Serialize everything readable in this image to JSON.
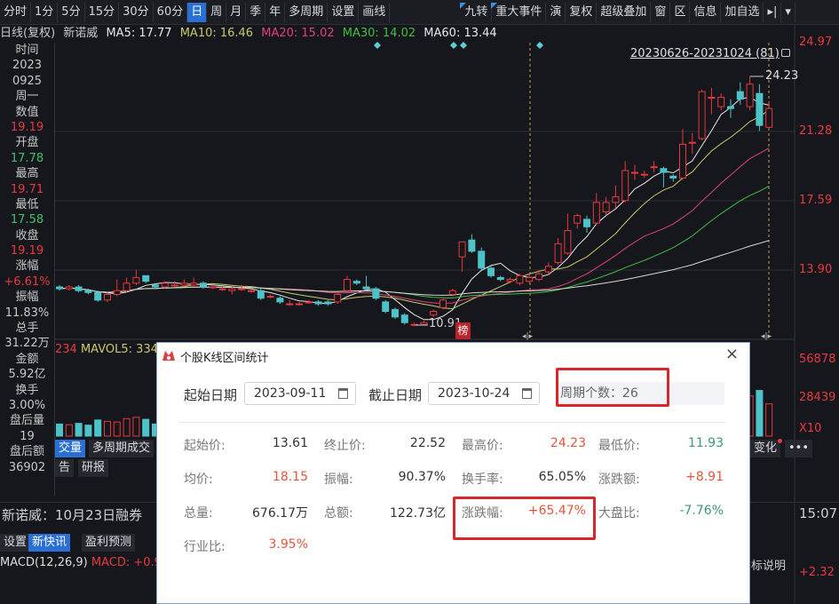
{
  "toolbar": {
    "items": [
      "分时",
      "1分",
      "5分",
      "15分",
      "30分",
      "60分",
      "日",
      "周",
      "月",
      "季",
      "年",
      "多周期",
      "设置",
      "画线"
    ],
    "active": "日",
    "right_items": [
      "九转",
      "重大事件",
      "演",
      "复权",
      "超级叠加",
      "窗",
      "区",
      "信息",
      "加自选"
    ],
    "flagged": [
      "九转",
      "重大事件"
    ],
    "extra_icons": [
      "pin-icon",
      "dropdown-arrow-icon"
    ]
  },
  "legend": {
    "period": "日线(复权)",
    "stock": "新诺威",
    "ma5": "MA5: 17.77",
    "ma10": "MA10: 16.46",
    "ma20": "MA20: 15.02",
    "ma30": "MA30: 14.02",
    "ma60": "MA60: 13.44"
  },
  "colors": {
    "up": "#e8383d",
    "down": "#4cc3c8",
    "ma5": "#e8e8e8",
    "ma10": "#c9c86a",
    "ma20": "#e0407a",
    "ma30": "#3fbf3f",
    "ma60": "#d8d8d8",
    "accent": "#2a6fd6"
  },
  "info_panel": [
    {
      "t": "时间",
      "c": ""
    },
    {
      "t": "2023",
      "c": ""
    },
    {
      "t": "0925",
      "c": ""
    },
    {
      "t": "周一",
      "c": ""
    },
    {
      "t": "数值",
      "c": ""
    },
    {
      "t": "19.19",
      "c": "red"
    },
    {
      "t": "开盘",
      "c": ""
    },
    {
      "t": "17.78",
      "c": "grn"
    },
    {
      "t": "最高",
      "c": ""
    },
    {
      "t": "19.71",
      "c": "red"
    },
    {
      "t": "最低",
      "c": ""
    },
    {
      "t": "17.58",
      "c": "grn"
    },
    {
      "t": "收盘",
      "c": ""
    },
    {
      "t": "19.19",
      "c": "red"
    },
    {
      "t": "涨幅",
      "c": ""
    },
    {
      "t": "+6.61%",
      "c": "red"
    },
    {
      "t": "振幅",
      "c": ""
    },
    {
      "t": "11.83%",
      "c": ""
    },
    {
      "t": "总手",
      "c": ""
    },
    {
      "t": "31.22万",
      "c": ""
    },
    {
      "t": "金额",
      "c": ""
    },
    {
      "t": "5.92亿",
      "c": ""
    },
    {
      "t": "换手",
      "c": ""
    },
    {
      "t": "3.00%",
      "c": ""
    },
    {
      "t": "盘后量",
      "c": ""
    },
    {
      "t": "19",
      "c": ""
    },
    {
      "t": "盘后额",
      "c": ""
    },
    {
      "t": "36902",
      "c": ""
    }
  ],
  "price_axis": [
    "24.97",
    "21.28",
    "17.59",
    "13.90"
  ],
  "volume_axis": [
    "56878",
    "28439",
    "X10"
  ],
  "range_label": "20230626-20231024 (81)",
  "high_mark": "24.23",
  "low_mark": "10.91",
  "badge": "榜",
  "volume_legend": {
    "vol": "234",
    "mavol5": "MAVOL5: 334"
  },
  "chart_data": {
    "type": "candlestick",
    "price_range": [
      11.0,
      24.97
    ],
    "candles": [
      [
        13.0,
        12.9,
        13.1,
        12.8
      ],
      [
        12.9,
        13.0,
        13.1,
        12.8
      ],
      [
        13.0,
        12.8,
        13.1,
        12.7
      ],
      [
        12.8,
        12.7,
        12.9,
        12.6
      ],
      [
        12.7,
        12.3,
        12.8,
        12.2
      ],
      [
        12.3,
        12.6,
        12.7,
        12.2
      ],
      [
        12.6,
        12.8,
        13.4,
        12.5
      ],
      [
        12.8,
        13.2,
        13.5,
        12.7
      ],
      [
        13.2,
        13.5,
        13.9,
        13.1
      ],
      [
        13.6,
        13.3,
        13.6,
        13.2
      ],
      [
        13.1,
        13.0,
        13.2,
        12.9
      ],
      [
        13.0,
        13.2,
        13.3,
        12.9
      ],
      [
        13.1,
        13.1,
        13.3,
        13.0
      ],
      [
        13.1,
        13.2,
        13.4,
        13.0
      ],
      [
        13.1,
        13.2,
        13.5,
        13.0
      ],
      [
        13.2,
        13.0,
        13.3,
        12.9
      ],
      [
        13.0,
        13.0,
        13.1,
        12.9
      ],
      [
        12.9,
        12.9,
        13.0,
        12.8
      ],
      [
        12.8,
        12.9,
        13.0,
        12.6
      ],
      [
        12.9,
        12.9,
        13.1,
        12.8
      ],
      [
        12.8,
        12.8,
        12.9,
        12.7
      ],
      [
        12.8,
        12.4,
        12.9,
        12.3
      ],
      [
        12.5,
        12.5,
        12.6,
        12.4
      ],
      [
        12.4,
        12.2,
        12.5,
        12.1
      ],
      [
        12.1,
        12.1,
        12.3,
        12.0
      ],
      [
        12.1,
        12.1,
        12.2,
        12.0
      ],
      [
        12.2,
        12.2,
        12.3,
        12.1
      ],
      [
        12.2,
        12.1,
        12.3,
        12.0
      ],
      [
        12.2,
        12.1,
        12.3,
        12.0
      ],
      [
        12.2,
        12.6,
        12.7,
        12.1
      ],
      [
        12.8,
        13.4,
        13.6,
        12.7
      ],
      [
        13.3,
        13.2,
        13.4,
        13.1
      ],
      [
        13.0,
        12.9,
        13.6,
        12.8
      ],
      [
        12.9,
        12.4,
        13.0,
        12.3
      ],
      [
        12.2,
        11.7,
        12.3,
        11.6
      ],
      [
        11.8,
        11.4,
        11.9,
        11.3
      ],
      [
        11.5,
        11.1,
        11.6,
        11.0
      ],
      [
        11.0,
        11.0,
        11.1,
        10.91
      ],
      [
        11.0,
        11.1,
        11.2,
        10.95
      ],
      [
        11.5,
        11.7,
        11.8,
        11.4
      ],
      [
        11.9,
        12.3,
        12.4,
        11.8
      ],
      [
        12.6,
        12.8,
        12.9,
        12.5
      ],
      [
        14.6,
        15.4,
        15.4,
        13.8
      ],
      [
        15.5,
        14.9,
        15.8,
        14.8
      ],
      [
        14.9,
        14.0,
        15.1,
        13.9
      ],
      [
        14.0,
        13.6,
        14.1,
        13.5
      ],
      [
        13.5,
        13.4,
        13.6,
        13.3
      ],
      [
        13.3,
        13.4,
        13.5,
        13.2
      ],
      [
        13.2,
        13.6,
        13.7,
        13.1
      ],
      [
        13.3,
        13.5,
        13.7,
        13.2
      ],
      [
        13.4,
        13.7,
        13.9,
        13.3
      ],
      [
        13.8,
        14.1,
        14.3,
        13.7
      ],
      [
        14.3,
        15.3,
        15.6,
        14.2
      ],
      [
        14.8,
        16.0,
        16.9,
        14.7
      ],
      [
        16.4,
        16.8,
        16.9,
        16.1
      ],
      [
        16.6,
        16.2,
        16.8,
        15.9
      ],
      [
        16.4,
        17.5,
        18.0,
        16.3
      ],
      [
        17.0,
        17.5,
        17.8,
        16.8
      ],
      [
        17.5,
        17.8,
        18.4,
        17.2
      ],
      [
        17.6,
        19.2,
        19.7,
        17.5
      ],
      [
        19.1,
        19.1,
        19.5,
        18.7
      ],
      [
        19.0,
        19.0,
        19.2,
        18.8
      ],
      [
        19.4,
        19.4,
        19.7,
        19.1
      ],
      [
        19.3,
        19.1,
        19.4,
        18.3
      ],
      [
        18.9,
        18.8,
        19.0,
        18.6
      ],
      [
        18.8,
        20.6,
        21.4,
        18.7
      ],
      [
        20.7,
        20.7,
        21.2,
        20.1
      ],
      [
        20.9,
        23.4,
        23.5,
        20.8
      ],
      [
        23.1,
        23.1,
        23.6,
        22.2
      ],
      [
        22.6,
        23.1,
        23.3,
        22.4
      ],
      [
        22.6,
        22.5,
        23.0,
        22.0
      ],
      [
        23.4,
        23.0,
        23.9,
        22.7
      ],
      [
        22.6,
        23.8,
        24.23,
        22.4
      ],
      [
        23.3,
        21.6,
        23.8,
        21.3
      ],
      [
        21.5,
        22.5,
        22.9,
        21.4
      ]
    ],
    "volumes": [
      9000,
      8500,
      9500,
      8200,
      12000,
      11000,
      10500,
      13000,
      14000,
      12500,
      9000,
      8800,
      8000,
      8500,
      9000,
      8200,
      7500,
      7000,
      7200,
      7000,
      6800,
      9500,
      7000,
      8000,
      7500,
      6500,
      6000,
      6200,
      6400,
      9000,
      15000,
      12000,
      11000,
      13000,
      15000,
      14000,
      13000,
      10000,
      9000,
      11000,
      13000,
      14000,
      38000,
      30000,
      26000,
      20000,
      14000,
      12000,
      13000,
      14000,
      15000,
      17000,
      24000,
      28000,
      22000,
      20000,
      26000,
      21000,
      20000,
      30000,
      22000,
      18000,
      19000,
      20000,
      18000,
      32000,
      24000,
      52000,
      36000,
      28000,
      24000,
      26000,
      30000,
      34000,
      24000
    ],
    "range_start_index": 49
  },
  "dialog": {
    "title": "个股K线区间统计",
    "close": "×",
    "start_label": "起始日期",
    "start_value": "2023-09-11",
    "end_label": "截止日期",
    "end_value": "2023-10-24",
    "period_count": "周期个数：26",
    "stats": [
      {
        "k": "起始价:",
        "v": "13.61",
        "c": ""
      },
      {
        "k": "终止价:",
        "v": "22.52",
        "c": ""
      },
      {
        "k": "最高价:",
        "v": "24.23",
        "c": "r"
      },
      {
        "k": "最低价:",
        "v": "11.93",
        "c": "g"
      },
      {
        "k": "均价:",
        "v": "18.15",
        "c": "r"
      },
      {
        "k": "振幅:",
        "v": "90.37%",
        "c": ""
      },
      {
        "k": "换手率:",
        "v": "65.05%",
        "c": ""
      },
      {
        "k": "涨跌额:",
        "v": "+8.91",
        "c": "r"
      },
      {
        "k": "总量:",
        "v": "676.17万",
        "c": ""
      },
      {
        "k": "总额:",
        "v": "122.73亿",
        "c": ""
      },
      {
        "k": "涨跌幅:",
        "v": "+65.47%",
        "c": "r"
      },
      {
        "k": "大盘比:",
        "v": "-7.76%",
        "c": "g"
      },
      {
        "k": "行业比:",
        "v": "3.95%",
        "c": "r"
      }
    ]
  },
  "bottom": {
    "tab_volume": "交量",
    "tab_multi": "多周期成交",
    "tab_report": "告",
    "tab_research": "研报",
    "news": "新诺威：10月23日融券",
    "btn_settings": "设置",
    "btn_news": "新快讯",
    "btn_forecast": "盈利预测",
    "macd_label": "MACD(12,26,9)",
    "macd_value": "MACD: +0.9",
    "right_change": "变化",
    "right_more": "•••",
    "time": "15:07",
    "indicator_help": "标说明",
    "right_value": "+2.32"
  }
}
